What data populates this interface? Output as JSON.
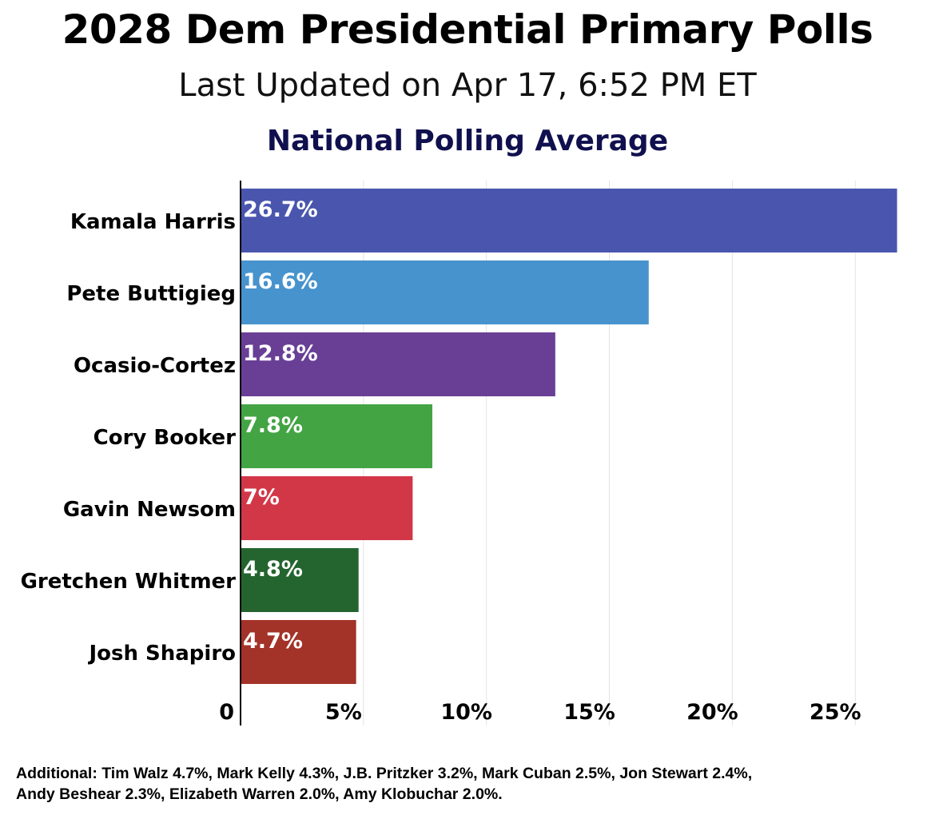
{
  "header": {
    "title": "2028 Dem Presidential Primary Polls",
    "subtitle": "Last Updated on Apr 17, 6:52 PM ET"
  },
  "chart_data": {
    "type": "bar",
    "orientation": "horizontal",
    "title": "National Polling Average",
    "categories": [
      "Kamala Harris",
      "Pete Buttigieg",
      "Ocasio-Cortez",
      "Cory Booker",
      "Gavin Newsom",
      "Gretchen Whitmer",
      "Josh Shapiro"
    ],
    "values": [
      26.7,
      16.6,
      12.8,
      7.8,
      7.0,
      4.8,
      4.7
    ],
    "value_labels": [
      "26.7%",
      "16.6%",
      "12.8%",
      "7.8%",
      "7%",
      "4.8%",
      "4.7%"
    ],
    "colors": [
      "#4a56ae",
      "#4793cd",
      "#693f96",
      "#43a444",
      "#d23748",
      "#24652f",
      "#a33228"
    ],
    "xlim": [
      0,
      27.3
    ],
    "xticks": [
      0,
      5,
      10,
      15,
      20,
      25
    ],
    "xtick_labels": [
      "0",
      "5%",
      "10%",
      "15%",
      "20%",
      "25%"
    ],
    "xlabel": "",
    "ylabel": "",
    "grid": "vertical"
  },
  "footnote": {
    "line1": "Additional: Tim Walz 4.7%, Mark Kelly 4.3%, J.B. Pritzker 3.2%, Mark Cuban 2.5%, Jon Stewart 2.4%,",
    "line2": "Andy Beshear 2.3%, Elizabeth Warren 2.0%, Amy Klobuchar 2.0%."
  }
}
